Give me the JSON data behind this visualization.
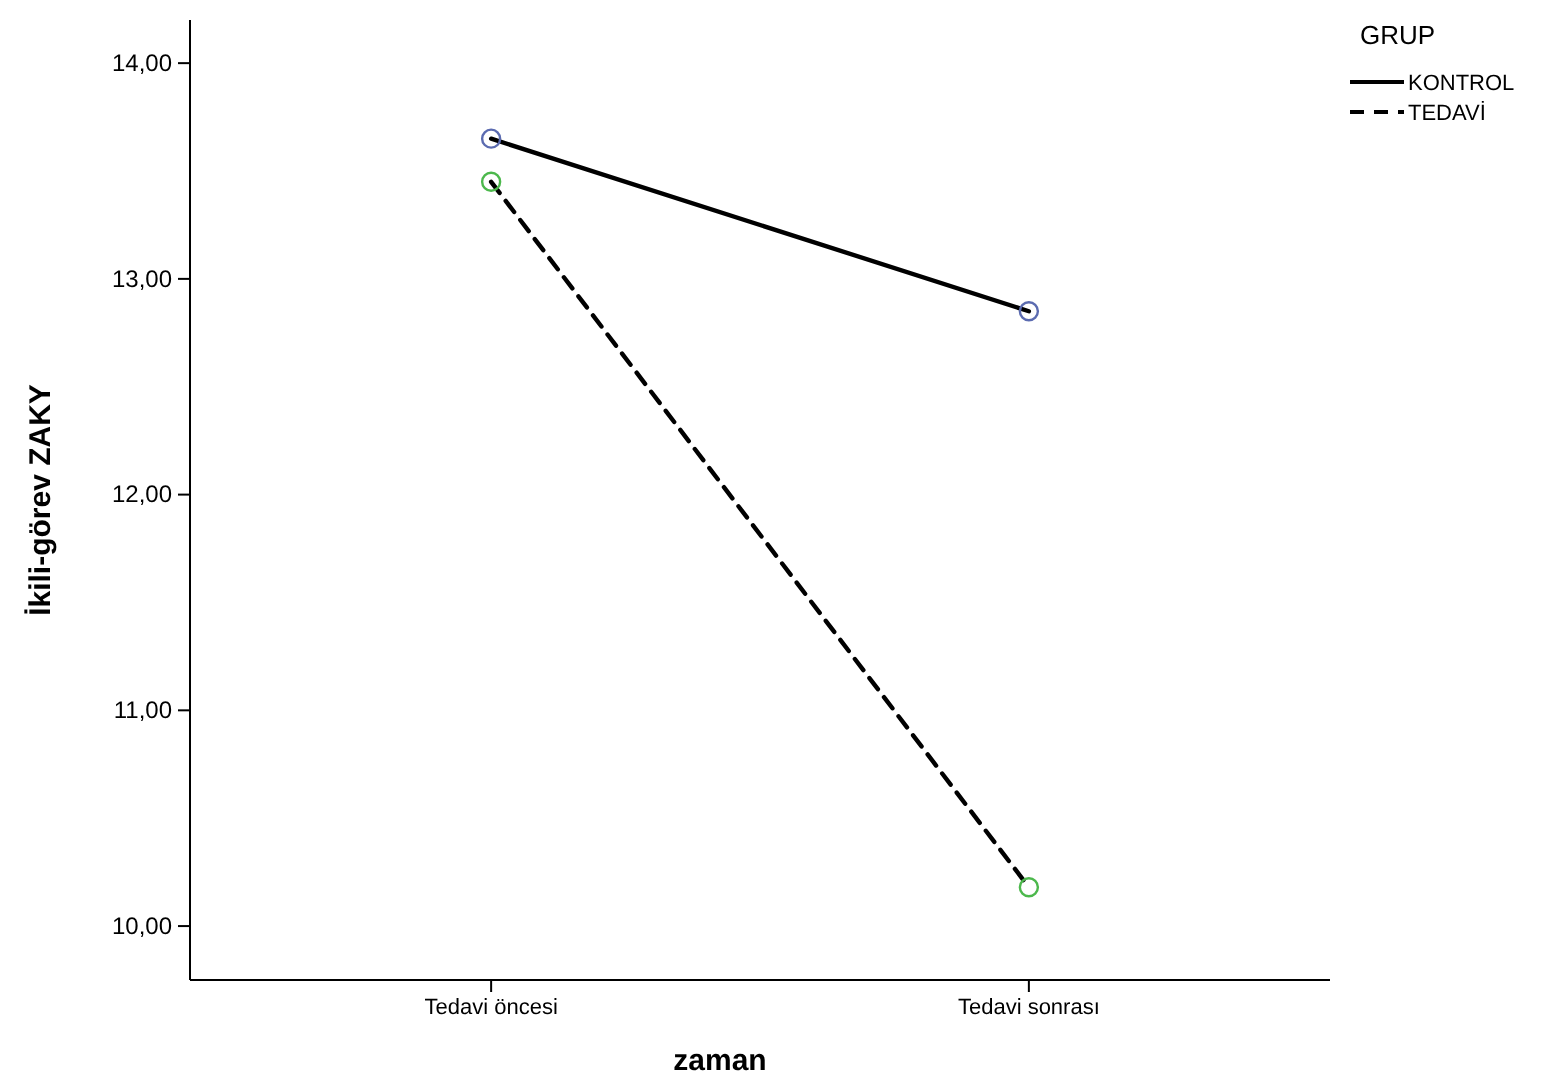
{
  "chart_data": {
    "type": "line",
    "xlabel": "zaman",
    "ylabel": "İkili-görev ZAKY",
    "legend_title": "GRUP",
    "categories": [
      "Tedavi öncesi",
      "Tedavi sonrası"
    ],
    "series": [
      {
        "name": "KONTROL",
        "color": "#000000",
        "line_style": "solid",
        "values": [
          13.65,
          12.85
        ]
      },
      {
        "name": "TEDAVİ",
        "color": "#000000",
        "line_style": "dashed",
        "values": [
          13.45,
          10.18
        ]
      }
    ],
    "ylim": [
      9.75,
      14.2
    ],
    "yticks": [
      {
        "value": 10,
        "label": "10,00"
      },
      {
        "value": 11,
        "label": "11,00"
      },
      {
        "value": 12,
        "label": "12,00"
      },
      {
        "value": 13,
        "label": "13,00"
      },
      {
        "value": 14,
        "label": "14,00"
      }
    ],
    "marker": "circle",
    "legend": "top right",
    "grid": false
  }
}
